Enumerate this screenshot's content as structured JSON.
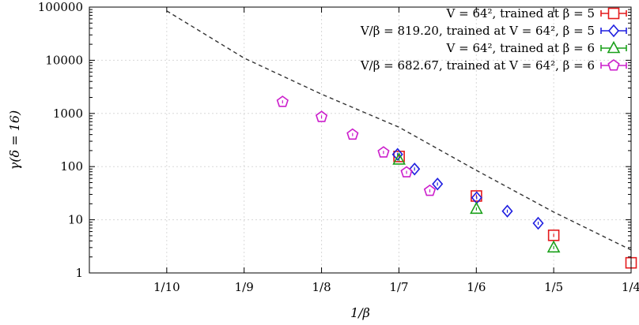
{
  "chart_data": {
    "type": "scatter",
    "title": "",
    "xlabel": "1/β",
    "ylabel": "γ(δ = 16)",
    "x_scale": "reciprocal",
    "y_scale": "log",
    "xlim": [
      0.09091,
      0.25
    ],
    "ylim": [
      1,
      100000
    ],
    "grid": true,
    "legend_position": "top-right",
    "x_ticks": [
      {
        "x": 0.1,
        "label": "1/10"
      },
      {
        "x": 0.11111,
        "label": "1/9"
      },
      {
        "x": 0.125,
        "label": "1/8"
      },
      {
        "x": 0.14286,
        "label": "1/7"
      },
      {
        "x": 0.16667,
        "label": "1/6"
      },
      {
        "x": 0.2,
        "label": "1/5"
      },
      {
        "x": 0.25,
        "label": "1/4"
      }
    ],
    "y_ticks": [
      {
        "y": 1,
        "label": "1"
      },
      {
        "y": 10,
        "label": "10"
      },
      {
        "y": 100,
        "label": "100"
      },
      {
        "y": 1000,
        "label": "1000"
      },
      {
        "y": 10000,
        "label": "10000"
      },
      {
        "y": 100000,
        "label": "100000"
      }
    ],
    "series": [
      {
        "name": "V = 64², trained at β = 5",
        "marker": "square",
        "color": "#e41a1c",
        "points": [
          {
            "x": 0.1429,
            "y": 155
          },
          {
            "x": 0.1667,
            "y": 28
          },
          {
            "x": 0.2,
            "y": 5.1
          },
          {
            "x": 0.25,
            "y": 1.55
          }
        ]
      },
      {
        "name": "V/β = 819.20, trained at V = 64², β = 5",
        "marker": "diamond",
        "color": "#1f1fe0",
        "points": [
          {
            "x": 0.1425,
            "y": 170
          },
          {
            "x": 0.1471,
            "y": 90
          },
          {
            "x": 0.1538,
            "y": 47
          },
          {
            "x": 0.1668,
            "y": 26
          },
          {
            "x": 0.1786,
            "y": 14.5
          },
          {
            "x": 0.1923,
            "y": 8.6
          }
        ]
      },
      {
        "name": "V = 64², trained at β = 6",
        "marker": "triangle",
        "color": "#1aa01a",
        "points": [
          {
            "x": 0.1429,
            "y": 135
          },
          {
            "x": 0.1667,
            "y": 16
          },
          {
            "x": 0.2,
            "y": 3.0
          }
        ]
      },
      {
        "name": "V/β = 682.67, trained at V = 64², β = 6",
        "marker": "pentagon",
        "color": "#cc1fcc",
        "points": [
          {
            "x": 0.1176,
            "y": 1650
          },
          {
            "x": 0.125,
            "y": 860
          },
          {
            "x": 0.1316,
            "y": 400
          },
          {
            "x": 0.1389,
            "y": 185
          },
          {
            "x": 0.1449,
            "y": 78
          },
          {
            "x": 0.1515,
            "y": 35
          }
        ]
      }
    ],
    "reference_curve": {
      "style": "dashed",
      "color": "#333333",
      "points": [
        {
          "x": 0.1,
          "y": 85000
        },
        {
          "x": 0.1111,
          "y": 11000
        },
        {
          "x": 0.125,
          "y": 2300
        },
        {
          "x": 0.1429,
          "y": 550
        },
        {
          "x": 0.1667,
          "y": 85
        },
        {
          "x": 0.2,
          "y": 14
        },
        {
          "x": 0.25,
          "y": 2.7
        }
      ]
    }
  }
}
